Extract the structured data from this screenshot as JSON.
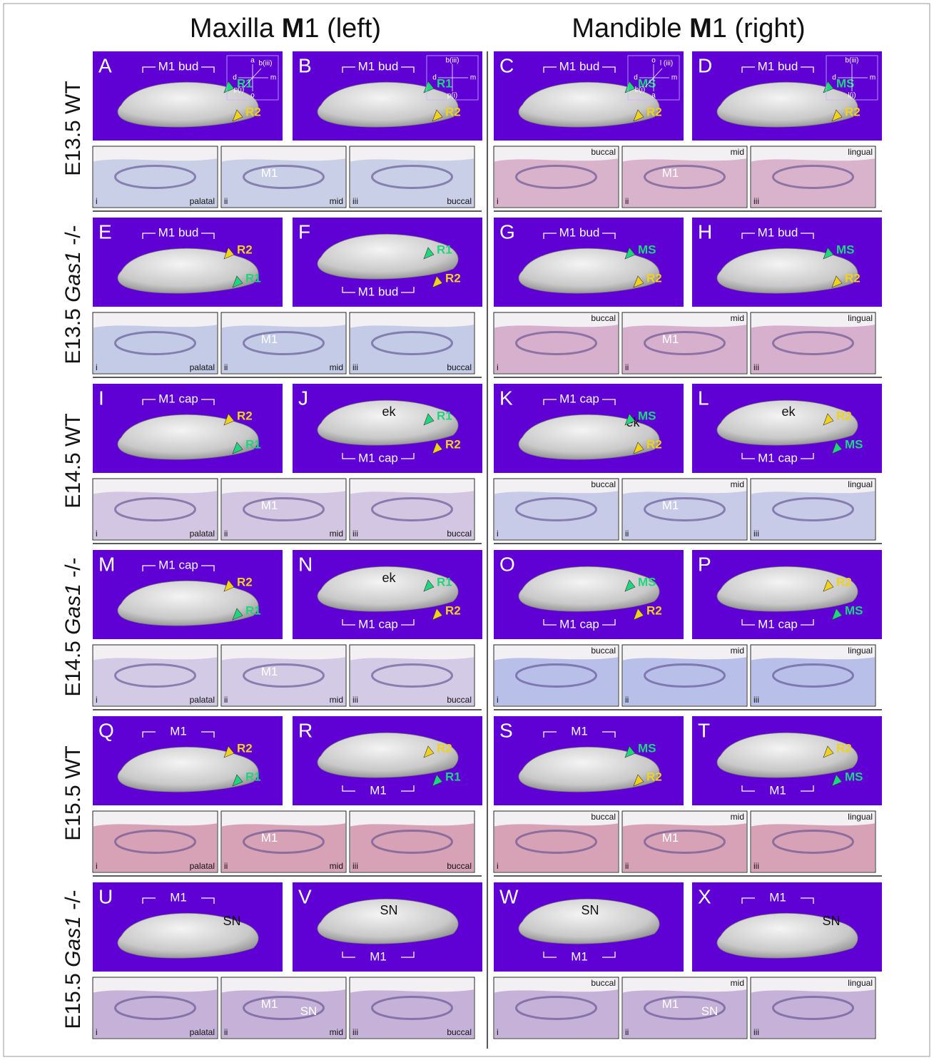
{
  "headers": [
    [
      "Maxilla ",
      "M",
      "1 (left)"
    ],
    [
      "Mandible ",
      "M",
      "1 (right)"
    ]
  ],
  "rows": [
    {
      "label": [
        "E13.5",
        "WT"
      ],
      "panels": [
        {
          "letter": "A",
          "bracket": "M1 bud",
          "labels": [],
          "arrows": [
            {
              "text": "R1",
              "color": "#1fd67f"
            },
            {
              "text": "R2",
              "color": "#f0d21c"
            }
          ],
          "compass": {
            "top": "a",
            "top_right": "b(iii)",
            "left": "d",
            "right": "m",
            "bottom_left": "p(i)",
            "bottom": "o"
          }
        },
        {
          "letter": "B",
          "bracket": "M1 bud",
          "labels": [],
          "arrows": [
            {
              "text": "R1",
              "color": "#1fd67f"
            },
            {
              "text": "R2",
              "color": "#f0d21c"
            }
          ],
          "compass": {
            "top": "b(iii)",
            "left": "d",
            "right": "m",
            "bottom": "p(i)"
          }
        },
        {
          "letter": "C",
          "bracket": "M1 bud",
          "labels": [],
          "arrows": [
            {
              "text": "MS",
              "color": "#1fd67f"
            },
            {
              "text": "R2",
              "color": "#f0d21c"
            }
          ],
          "compass": {
            "top": "o",
            "top_right": "l (iii)",
            "left": "d",
            "right": "m",
            "bottom_left": "b(i)",
            "bottom": "a"
          }
        },
        {
          "letter": "D",
          "bracket": "M1 bud",
          "labels": [],
          "arrows": [
            {
              "text": "MS",
              "color": "#1fd67f"
            },
            {
              "text": "R2",
              "color": "#f0d21c"
            }
          ],
          "compass": {
            "top": "b(iii)",
            "left": "d",
            "right": "m",
            "bottom": "l(i)"
          }
        }
      ],
      "sections": [
        {
          "numeral": "i",
          "place": "palatal",
          "labels": []
        },
        {
          "numeral": "ii",
          "place": "mid",
          "labels": [
            "M1"
          ]
        },
        {
          "numeral": "iii",
          "place": "buccal",
          "labels": []
        },
        {
          "numeral": "i",
          "place": "buccal",
          "labels": []
        },
        {
          "numeral": "ii",
          "place": "mid",
          "labels": [
            "M1"
          ]
        },
        {
          "numeral": "iii",
          "place": "lingual",
          "labels": []
        }
      ]
    },
    {
      "label": [
        "E13.5",
        "Gas1",
        "-/-"
      ],
      "panels": [
        {
          "letter": "E",
          "bracket": "M1 bud",
          "labels": [],
          "arrows": [
            {
              "text": "R2",
              "color": "#f0d21c"
            },
            {
              "text": "R1",
              "color": "#1fd67f"
            }
          ]
        },
        {
          "letter": "F",
          "bracket": "M1 bud",
          "labels": [],
          "arrows": [
            {
              "text": "R1",
              "color": "#1fd67f"
            },
            {
              "text": "R2",
              "color": "#f0d21c"
            }
          ]
        },
        {
          "letter": "G",
          "bracket": "M1 bud",
          "labels": [],
          "arrows": [
            {
              "text": "MS",
              "color": "#1fd67f"
            },
            {
              "text": "R2",
              "color": "#f0d21c"
            }
          ]
        },
        {
          "letter": "H",
          "bracket": "M1 bud",
          "labels": [],
          "arrows": [
            {
              "text": "MS",
              "color": "#1fd67f"
            },
            {
              "text": "R2",
              "color": "#f0d21c"
            }
          ]
        }
      ],
      "sections": [
        {
          "numeral": "i",
          "place": "palatal",
          "labels": []
        },
        {
          "numeral": "ii",
          "place": "mid",
          "labels": [
            "M1"
          ]
        },
        {
          "numeral": "iii",
          "place": "buccal",
          "labels": []
        },
        {
          "numeral": "i",
          "place": "buccal",
          "labels": []
        },
        {
          "numeral": "ii",
          "place": "mid",
          "labels": [
            "M1"
          ]
        },
        {
          "numeral": "iii",
          "place": "lingual",
          "labels": []
        }
      ]
    },
    {
      "label": [
        "E14.5",
        "WT"
      ],
      "panels": [
        {
          "letter": "I",
          "bracket": "M1 cap",
          "labels": [],
          "arrows": [
            {
              "text": "R2",
              "color": "#f0d21c"
            },
            {
              "text": "R1",
              "color": "#1fd67f"
            }
          ]
        },
        {
          "letter": "J",
          "bracket": "M1 cap",
          "labels": [
            "ek"
          ],
          "arrows": [
            {
              "text": "R1",
              "color": "#1fd67f"
            },
            {
              "text": "R2",
              "color": "#f0d21c"
            }
          ]
        },
        {
          "letter": "K",
          "bracket": "M1 cap",
          "labels": [
            "ek"
          ],
          "arrows": [
            {
              "text": "MS",
              "color": "#1fd67f"
            },
            {
              "text": "R2",
              "color": "#f0d21c"
            }
          ]
        },
        {
          "letter": "L",
          "bracket": "M1 cap",
          "labels": [
            "ek"
          ],
          "arrows": [
            {
              "text": "R2",
              "color": "#f0d21c"
            },
            {
              "text": "MS",
              "color": "#1fd67f"
            }
          ]
        }
      ],
      "sections": [
        {
          "numeral": "i",
          "place": "palatal",
          "labels": []
        },
        {
          "numeral": "ii",
          "place": "mid",
          "labels": [
            "M1"
          ]
        },
        {
          "numeral": "iii",
          "place": "buccal",
          "labels": []
        },
        {
          "numeral": "i",
          "place": "buccal",
          "labels": []
        },
        {
          "numeral": "ii",
          "place": "mid",
          "labels": [
            "M1"
          ]
        },
        {
          "numeral": "iii",
          "place": "lingual",
          "labels": []
        }
      ]
    },
    {
      "label": [
        "E14.5",
        "Gas1",
        "-/-"
      ],
      "panels": [
        {
          "letter": "M",
          "bracket": "M1 cap",
          "labels": [],
          "arrows": [
            {
              "text": "R2",
              "color": "#f0d21c"
            },
            {
              "text": "R1",
              "color": "#1fd67f"
            }
          ]
        },
        {
          "letter": "N",
          "bracket": "M1 cap",
          "labels": [
            "ek"
          ],
          "arrows": [
            {
              "text": "R1",
              "color": "#1fd67f"
            },
            {
              "text": "R2",
              "color": "#f0d21c"
            }
          ]
        },
        {
          "letter": "O",
          "bracket": "M1 cap",
          "labels": [],
          "arrows": [
            {
              "text": "MS",
              "color": "#1fd67f"
            },
            {
              "text": "R2",
              "color": "#f0d21c"
            }
          ]
        },
        {
          "letter": "P",
          "bracket": "M1 cap",
          "labels": [],
          "arrows": [
            {
              "text": "R2",
              "color": "#f0d21c"
            },
            {
              "text": "MS",
              "color": "#1fd67f"
            }
          ]
        }
      ],
      "sections": [
        {
          "numeral": "i",
          "place": "palatal",
          "labels": []
        },
        {
          "numeral": "ii",
          "place": "mid",
          "labels": [
            "M1"
          ]
        },
        {
          "numeral": "iii",
          "place": "buccal",
          "labels": []
        },
        {
          "numeral": "i",
          "place": "buccal",
          "labels": []
        },
        {
          "numeral": "ii",
          "place": "mid",
          "labels": []
        },
        {
          "numeral": "iii",
          "place": "lingual",
          "labels": []
        }
      ]
    },
    {
      "label": [
        "E15.5",
        "WT"
      ],
      "panels": [
        {
          "letter": "Q",
          "bracket": "M1",
          "labels": [],
          "arrows": [
            {
              "text": "R2",
              "color": "#f0d21c"
            },
            {
              "text": "R1",
              "color": "#1fd67f"
            }
          ]
        },
        {
          "letter": "R",
          "bracket": "M1",
          "labels": [],
          "arrows": [
            {
              "text": "R2",
              "color": "#f0d21c"
            },
            {
              "text": "R1",
              "color": "#1fd67f"
            }
          ]
        },
        {
          "letter": "S",
          "bracket": "M1",
          "labels": [],
          "arrows": [
            {
              "text": "MS",
              "color": "#1fd67f"
            },
            {
              "text": "R2",
              "color": "#f0d21c"
            }
          ]
        },
        {
          "letter": "T",
          "bracket": "M1",
          "labels": [],
          "arrows": [
            {
              "text": "R2",
              "color": "#f0d21c"
            },
            {
              "text": "MS",
              "color": "#1fd67f"
            }
          ]
        }
      ],
      "sections": [
        {
          "numeral": "i",
          "place": "palatal",
          "labels": []
        },
        {
          "numeral": "ii",
          "place": "mid",
          "labels": [
            "M1"
          ]
        },
        {
          "numeral": "iii",
          "place": "buccal",
          "labels": []
        },
        {
          "numeral": "i",
          "place": "buccal",
          "labels": []
        },
        {
          "numeral": "ii",
          "place": "mid",
          "labels": [
            "M1"
          ]
        },
        {
          "numeral": "iii",
          "place": "lingual",
          "labels": []
        }
      ]
    },
    {
      "label": [
        "E15.5",
        "Gas1",
        "-/-"
      ],
      "panels": [
        {
          "letter": "U",
          "bracket": "M1",
          "labels": [
            "SN"
          ],
          "arrows": []
        },
        {
          "letter": "V",
          "bracket": "M1",
          "labels": [
            "SN"
          ],
          "arrows": []
        },
        {
          "letter": "W",
          "bracket": "M1",
          "labels": [
            "SN"
          ],
          "arrows": []
        },
        {
          "letter": "X",
          "bracket": "M1",
          "labels": [
            "SN"
          ],
          "arrows": []
        }
      ],
      "sections": [
        {
          "numeral": "i",
          "place": "palatal",
          "labels": []
        },
        {
          "numeral": "ii",
          "place": "mid",
          "labels": [
            "M1",
            "SN"
          ]
        },
        {
          "numeral": "iii",
          "place": "buccal",
          "labels": []
        },
        {
          "numeral": "i",
          "place": "buccal",
          "labels": []
        },
        {
          "numeral": "ii",
          "place": "mid",
          "labels": [
            "M1",
            "SN"
          ]
        },
        {
          "numeral": "iii",
          "place": "lingual",
          "labels": []
        }
      ]
    }
  ]
}
